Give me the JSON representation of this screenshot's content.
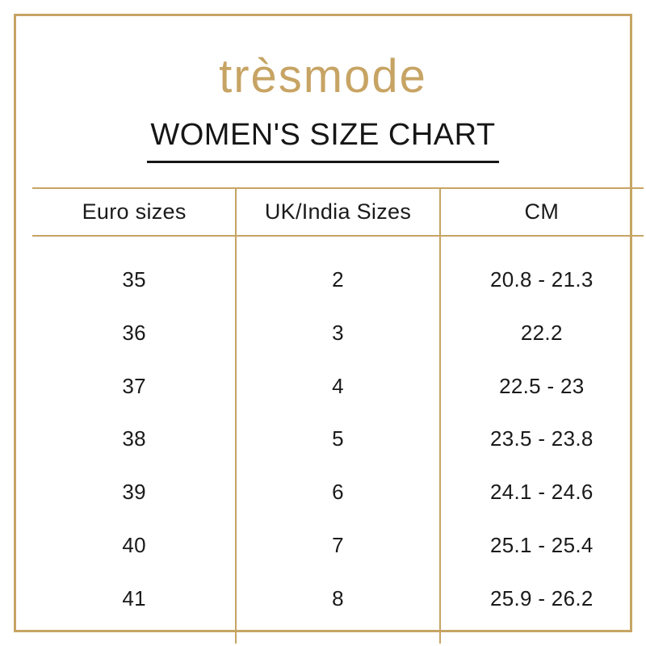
{
  "brand": {
    "logo_text": "trèsmode"
  },
  "title": "WOMEN'S SIZE CHART",
  "colors": {
    "accent_gold": "#c7a464",
    "text": "#1a1a1a",
    "background": "#ffffff"
  },
  "table": {
    "headers": [
      "Euro sizes",
      "UK/India Sizes",
      "CM"
    ],
    "rows": [
      {
        "euro": "35",
        "uk": "2",
        "cm": "20.8 - 21.3"
      },
      {
        "euro": "36",
        "uk": "3",
        "cm": "22.2"
      },
      {
        "euro": "37",
        "uk": "4",
        "cm": "22.5 - 23"
      },
      {
        "euro": "38",
        "uk": "5",
        "cm": "23.5 - 23.8"
      },
      {
        "euro": "39",
        "uk": "6",
        "cm": "24.1 - 24.6"
      },
      {
        "euro": "40",
        "uk": "7",
        "cm": "25.1 - 25.4"
      },
      {
        "euro": "41",
        "uk": "8",
        "cm": "25.9 - 26.2"
      }
    ]
  },
  "chart_data": {
    "type": "table",
    "title": "WOMEN'S SIZE CHART",
    "columns": [
      "Euro sizes",
      "UK/India Sizes",
      "CM"
    ],
    "rows": [
      [
        "35",
        "2",
        "20.8 - 21.3"
      ],
      [
        "36",
        "3",
        "22.2"
      ],
      [
        "37",
        "4",
        "22.5 - 23"
      ],
      [
        "38",
        "5",
        "23.5 - 23.8"
      ],
      [
        "39",
        "6",
        "24.1 - 24.6"
      ],
      [
        "40",
        "7",
        "25.1 - 25.4"
      ],
      [
        "41",
        "8",
        "25.9 - 26.2"
      ]
    ]
  }
}
